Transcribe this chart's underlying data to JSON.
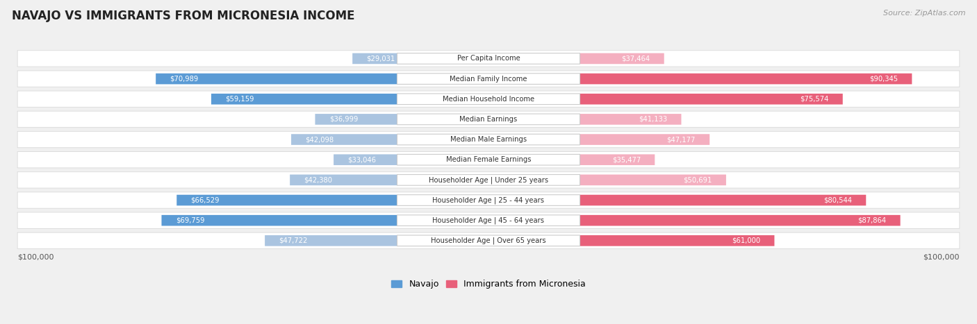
{
  "title": "NAVAJO VS IMMIGRANTS FROM MICRONESIA INCOME",
  "source": "Source: ZipAtlas.com",
  "categories": [
    "Per Capita Income",
    "Median Family Income",
    "Median Household Income",
    "Median Earnings",
    "Median Male Earnings",
    "Median Female Earnings",
    "Householder Age | Under 25 years",
    "Householder Age | 25 - 44 years",
    "Householder Age | 45 - 64 years",
    "Householder Age | Over 65 years"
  ],
  "navajo_values": [
    29031,
    70989,
    59159,
    36999,
    42098,
    33046,
    42380,
    66529,
    69759,
    47722
  ],
  "micronesia_values": [
    37464,
    90345,
    75574,
    41133,
    47177,
    35477,
    50691,
    80544,
    87864,
    61000
  ],
  "navajo_labels": [
    "$29,031",
    "$70,989",
    "$59,159",
    "$36,999",
    "$42,098",
    "$33,046",
    "$42,380",
    "$66,529",
    "$69,759",
    "$47,722"
  ],
  "micronesia_labels": [
    "$37,464",
    "$90,345",
    "$75,574",
    "$41,133",
    "$47,177",
    "$35,477",
    "$50,691",
    "$80,544",
    "$87,864",
    "$61,000"
  ],
  "navajo_color_light": "#aac4e0",
  "navajo_color_dark": "#5b9bd5",
  "micronesia_color_light": "#f4afc0",
  "micronesia_color_dark": "#e8607a",
  "label_inside_color": "#ffffff",
  "label_outside_color": "#555555",
  "max_value": 100000,
  "background_color": "#f0f0f0",
  "row_bg": "#f8f8f8",
  "legend_navajo": "Navajo",
  "legend_micronesia": "Immigrants from Micronesia",
  "xlabel_left": "$100,000",
  "xlabel_right": "$100,000",
  "inside_label_threshold": 15000
}
